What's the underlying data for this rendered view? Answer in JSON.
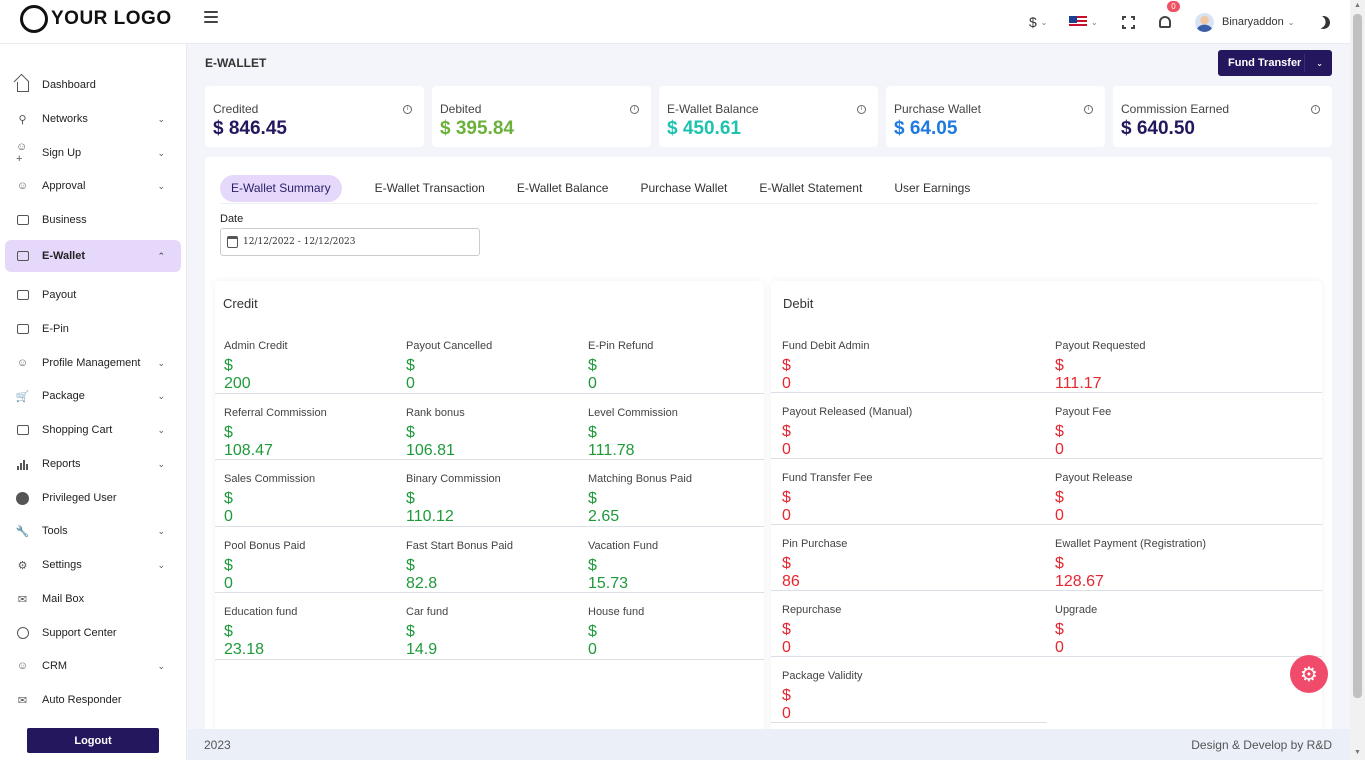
{
  "header": {
    "logo_text": "YOUR LOGO",
    "currency": "$",
    "notification_count": "0",
    "username": "Binaryaddon"
  },
  "sidebar": {
    "items": [
      {
        "label": "Dashboard",
        "icon": "home-icon",
        "has_submenu": false,
        "active": false
      },
      {
        "label": "Networks",
        "icon": "network-icon",
        "has_submenu": true,
        "active": false
      },
      {
        "label": "Sign Up",
        "icon": "user-plus-icon",
        "has_submenu": true,
        "active": false
      },
      {
        "label": "Approval",
        "icon": "user-check-icon",
        "has_submenu": true,
        "active": false
      },
      {
        "label": "Business",
        "icon": "briefcase-icon",
        "has_submenu": false,
        "active": false
      },
      {
        "label": "E-Wallet",
        "icon": "wallet-icon",
        "has_submenu": true,
        "active": true
      },
      {
        "label": "Payout",
        "icon": "cash-icon",
        "has_submenu": false,
        "active": false
      },
      {
        "label": "E-Pin",
        "icon": "pin-icon",
        "has_submenu": false,
        "active": false
      },
      {
        "label": "Profile Management",
        "icon": "user-icon",
        "has_submenu": true,
        "active": false
      },
      {
        "label": "Package",
        "icon": "cart-icon",
        "has_submenu": true,
        "active": false
      },
      {
        "label": "Shopping Cart",
        "icon": "bag-icon",
        "has_submenu": true,
        "active": false
      },
      {
        "label": "Reports",
        "icon": "bar-chart-icon",
        "has_submenu": true,
        "active": false
      },
      {
        "label": "Privileged User",
        "icon": "user-circle-icon",
        "has_submenu": false,
        "active": false
      },
      {
        "label": "Tools",
        "icon": "wrench-icon",
        "has_submenu": true,
        "active": false
      },
      {
        "label": "Settings",
        "icon": "gear-icon",
        "has_submenu": true,
        "active": false
      },
      {
        "label": "Mail Box",
        "icon": "mail-icon",
        "has_submenu": false,
        "active": false
      },
      {
        "label": "Support Center",
        "icon": "headset-icon",
        "has_submenu": false,
        "active": false
      },
      {
        "label": "CRM",
        "icon": "users-icon",
        "has_submenu": true,
        "active": false
      },
      {
        "label": "Auto Responder",
        "icon": "envelope-icon",
        "has_submenu": false,
        "active": false
      }
    ],
    "logout_label": "Logout"
  },
  "main": {
    "title": "E-WALLET",
    "fund_transfer_label": "Fund Transfer",
    "stats": [
      {
        "label": "Credited",
        "value": "$ 846.45",
        "color": "#25175e"
      },
      {
        "label": "Debited",
        "value": "$ 395.84",
        "color": "#6bb13c"
      },
      {
        "label": "E-Wallet Balance",
        "value": "$ 450.61",
        "color": "#1ec3b0"
      },
      {
        "label": "Purchase Wallet",
        "value": "$ 64.05",
        "color": "#1f7ae0"
      },
      {
        "label": "Commission Earned",
        "value": "$ 640.50",
        "color": "#25175e"
      }
    ],
    "tabs": [
      "E-Wallet Summary",
      "E-Wallet Transaction",
      "E-Wallet Balance",
      "Purchase Wallet",
      "E-Wallet Statement",
      "User Earnings"
    ],
    "date_label": "Date",
    "date_value": "12/12/2022 - 12/12/2023",
    "credit": {
      "title": "Credit",
      "items": [
        {
          "label": "Admin Credit",
          "value": "$ 200"
        },
        {
          "label": "Payout Cancelled",
          "value": "$ 0"
        },
        {
          "label": "E-Pin Refund",
          "value": "$ 0"
        },
        {
          "label": "Referral Commission",
          "value": "$ 108.47"
        },
        {
          "label": "Rank bonus",
          "value": "$ 106.81"
        },
        {
          "label": "Level Commission",
          "value": "$ 111.78"
        },
        {
          "label": "Sales Commission",
          "value": "$ 0"
        },
        {
          "label": "Binary Commission",
          "value": "$ 110.12"
        },
        {
          "label": "Matching Bonus Paid",
          "value": "$ 2.65"
        },
        {
          "label": "Pool Bonus Paid",
          "value": "$ 0"
        },
        {
          "label": "Fast Start Bonus Paid",
          "value": "$ 82.8"
        },
        {
          "label": "Vacation Fund",
          "value": "$ 15.73"
        },
        {
          "label": "Education fund",
          "value": "$ 23.18"
        },
        {
          "label": "Car fund",
          "value": "$ 14.9"
        },
        {
          "label": "House fund",
          "value": "$ 0"
        }
      ]
    },
    "debit": {
      "title": "Debit",
      "items": [
        {
          "label": "Fund Debit Admin",
          "value": "$ 0"
        },
        {
          "label": "Payout Requested",
          "value": "$ 111.17"
        },
        {
          "label": "Payout Released (Manual)",
          "value": "$ 0"
        },
        {
          "label": "Payout Fee",
          "value": "$ 0"
        },
        {
          "label": "Fund Transfer Fee",
          "value": "$ 0"
        },
        {
          "label": "Payout Release",
          "value": "$ 0"
        },
        {
          "label": "Pin Purchase",
          "value": "$ 86"
        },
        {
          "label": "Ewallet Payment (Registration)",
          "value": "$ 128.67"
        },
        {
          "label": "Repurchase",
          "value": "$ 0"
        },
        {
          "label": "Upgrade",
          "value": "$ 0"
        },
        {
          "label": "Package Validity",
          "value": "$ 0"
        }
      ]
    }
  },
  "footer": {
    "year": "2023",
    "credit": "Design & Develop by R&D"
  }
}
